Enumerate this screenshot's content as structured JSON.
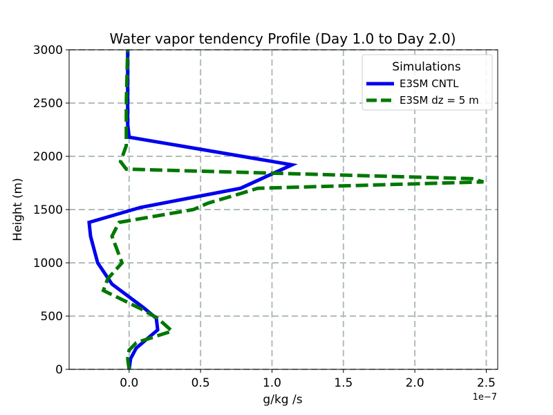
{
  "chart_data": {
    "type": "line",
    "title": "Water vapor tendency Profile (Day 1.0 to Day 2.0)",
    "xlabel": "g/kg /s",
    "ylabel": "Height (m)",
    "x_offset_label": "1e−7",
    "x_scale_exponent": -7,
    "xlim": [
      -0.42,
      2.58
    ],
    "ylim": [
      0,
      3000
    ],
    "x_ticks": [
      0.0,
      0.5,
      1.0,
      1.5,
      2.0,
      2.5
    ],
    "x_tick_labels": [
      "0.0",
      "0.5",
      "1.0",
      "1.5",
      "2.0",
      "2.5"
    ],
    "y_ticks": [
      0,
      500,
      1000,
      1500,
      2000,
      2500,
      3000
    ],
    "y_tick_labels": [
      "0",
      "500",
      "1000",
      "1500",
      "2000",
      "2500",
      "3000"
    ],
    "grid": true,
    "legend": {
      "title": "Simulations",
      "position": "top-right"
    },
    "series": [
      {
        "name": "E3SM CNTL",
        "color": "#0000ee",
        "dash": "solid",
        "points": [
          [
            0.0,
            0
          ],
          [
            0.01,
            100
          ],
          [
            0.05,
            200
          ],
          [
            0.2,
            370
          ],
          [
            0.19,
            480
          ],
          [
            0.1,
            580
          ],
          [
            -0.12,
            800
          ],
          [
            -0.22,
            1000
          ],
          [
            -0.27,
            1250
          ],
          [
            -0.28,
            1380
          ],
          [
            0.08,
            1520
          ],
          [
            0.78,
            1700
          ],
          [
            1.14,
            1920
          ],
          [
            0.0,
            2180
          ],
          [
            -0.01,
            2300
          ],
          [
            -0.01,
            2700
          ],
          [
            -0.01,
            3000
          ]
        ]
      },
      {
        "name": "E3SM dz = 5 m",
        "color": "#007700",
        "dash": "dashed",
        "points": [
          [
            0.0,
            0
          ],
          [
            -0.01,
            100
          ],
          [
            0.0,
            180
          ],
          [
            0.05,
            250
          ],
          [
            0.3,
            360
          ],
          [
            0.2,
            480
          ],
          [
            0.08,
            570
          ],
          [
            -0.18,
            740
          ],
          [
            -0.15,
            850
          ],
          [
            -0.05,
            1000
          ],
          [
            -0.12,
            1250
          ],
          [
            -0.07,
            1380
          ],
          [
            0.45,
            1500
          ],
          [
            0.55,
            1560
          ],
          [
            0.78,
            1650
          ],
          [
            0.9,
            1700
          ],
          [
            2.48,
            1760
          ],
          [
            2.4,
            1790
          ],
          [
            -0.02,
            1880
          ],
          [
            -0.06,
            1950
          ],
          [
            -0.02,
            2100
          ],
          [
            -0.02,
            2500
          ],
          [
            -0.01,
            3000
          ]
        ]
      }
    ]
  }
}
